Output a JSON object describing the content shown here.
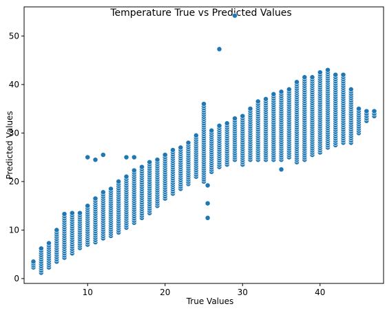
{
  "chart_data": {
    "type": "scatter",
    "title": "Temperature True vs Predicted Values",
    "xlabel": "True Values",
    "ylabel": "Predicted Values",
    "xlim": [
      1.8,
      48.2
    ],
    "ylim": [
      -1.0,
      56.0
    ],
    "xticks": [
      10,
      20,
      30,
      40
    ],
    "yticks": [
      0,
      10,
      20,
      30,
      40,
      50
    ],
    "grid": false,
    "legend": "none",
    "marker_color": "#1f77b4",
    "band": {
      "x_values": [
        3,
        4,
        5,
        6,
        7,
        8,
        9,
        10,
        11,
        12,
        13,
        14,
        15,
        16,
        17,
        18,
        19,
        20,
        21,
        22,
        23,
        24,
        25,
        26,
        27,
        28,
        29,
        30,
        31,
        32,
        33,
        34,
        35,
        36,
        37,
        38,
        39,
        40,
        41,
        42,
        43,
        44,
        45,
        46,
        47
      ],
      "y_min": [
        2.3,
        1.2,
        2.3,
        3.5,
        4.3,
        5.2,
        6.3,
        7.0,
        7.5,
        8.3,
        8.8,
        9.5,
        10.5,
        11.5,
        12.5,
        13.5,
        15.0,
        16.5,
        17.5,
        18.5,
        19.5,
        21.0,
        20.0,
        22.0,
        23.0,
        23.5,
        24.5,
        23.5,
        24.5,
        24.5,
        24.5,
        24.5,
        24.5,
        25.0,
        24.0,
        24.5,
        25.5,
        26.0,
        27.0,
        27.5,
        28.0,
        28.0,
        30.0,
        32.5,
        33.5
      ],
      "y_max": [
        3.5,
        6.2,
        7.3,
        10.0,
        13.3,
        13.5,
        13.5,
        15.0,
        16.5,
        17.8,
        18.5,
        20.0,
        21.0,
        22.3,
        23.0,
        24.0,
        24.5,
        25.5,
        26.5,
        27.0,
        28.0,
        29.5,
        36.0,
        30.5,
        31.5,
        32.0,
        33.0,
        33.5,
        35.0,
        36.5,
        37.0,
        38.0,
        38.5,
        39.0,
        40.5,
        41.5,
        41.5,
        42.5,
        43.0,
        42.0,
        42.0,
        39.0,
        35.0,
        34.5,
        34.5
      ]
    },
    "outliers": {
      "x": [
        10,
        11,
        12,
        15,
        16,
        25.5,
        25.5,
        25.5,
        27,
        29,
        35
      ],
      "y": [
        25,
        24.5,
        25.5,
        25,
        25,
        19.2,
        15.5,
        12.5,
        47.3,
        54.2,
        22.5
      ]
    }
  }
}
